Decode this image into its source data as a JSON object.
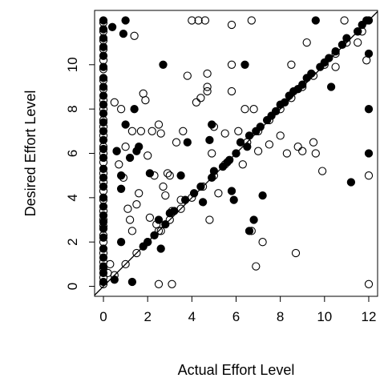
{
  "chart_data": {
    "type": "scatter",
    "title": "",
    "xlabel": "Actual Effort Level",
    "ylabel": "Desired Effort Level",
    "xlim": [
      -0.4,
      12.4
    ],
    "ylim": [
      -0.45,
      12.45
    ],
    "x_ticks": [
      0,
      2,
      4,
      6,
      8,
      10,
      12
    ],
    "y_ticks": [
      0,
      2,
      4,
      6,
      8,
      10
    ],
    "grid": false,
    "legend": "none",
    "reference_line": {
      "slope": 1,
      "intercept": 0
    },
    "series": [
      {
        "marker": "open-circle",
        "points": [
          [
            0,
            0.1
          ],
          [
            0,
            0.4
          ],
          [
            0,
            0.8
          ],
          [
            0,
            1.1
          ],
          [
            0,
            1.5
          ],
          [
            0,
            2.0
          ],
          [
            0,
            2.3
          ],
          [
            0,
            2.7
          ],
          [
            0,
            3.0
          ],
          [
            0,
            3.4
          ],
          [
            0,
            3.9
          ],
          [
            0,
            4.3
          ],
          [
            0,
            4.7
          ],
          [
            0,
            5.1
          ],
          [
            0,
            5.6
          ],
          [
            0,
            6.0
          ],
          [
            0,
            6.3
          ],
          [
            0,
            6.8
          ],
          [
            0,
            7.2
          ],
          [
            0,
            7.5
          ],
          [
            0,
            8.0
          ],
          [
            0,
            8.4
          ],
          [
            0,
            8.9
          ],
          [
            0,
            9.3
          ],
          [
            0,
            9.8
          ],
          [
            0,
            10.2
          ],
          [
            0,
            10.7
          ],
          [
            0,
            11.1
          ],
          [
            0,
            11.5
          ],
          [
            0,
            11.9
          ],
          [
            0.2,
            0.6
          ],
          [
            0.3,
            1.0
          ],
          [
            0.5,
            8.3
          ],
          [
            0.6,
            6.1
          ],
          [
            0.7,
            5.5
          ],
          [
            0.8,
            8.0
          ],
          [
            0.9,
            4.9
          ],
          [
            1.0,
            6.3
          ],
          [
            1.1,
            3.5
          ],
          [
            1.2,
            3.0
          ],
          [
            1.3,
            7.0
          ],
          [
            1.3,
            2.5
          ],
          [
            1.4,
            11.3
          ],
          [
            1.5,
            3.7
          ],
          [
            1.6,
            4.2
          ],
          [
            1.7,
            7.0
          ],
          [
            1.8,
            8.7
          ],
          [
            1.9,
            8.4
          ],
          [
            2.0,
            5.9
          ],
          [
            2.1,
            3.1
          ],
          [
            2.2,
            7.0
          ],
          [
            2.3,
            5.0
          ],
          [
            2.4,
            2.8
          ],
          [
            2.5,
            7.3
          ],
          [
            2.5,
            0.1
          ],
          [
            2.6,
            6.9
          ],
          [
            2.6,
            2.5
          ],
          [
            2.7,
            4.5
          ],
          [
            2.8,
            4.1
          ],
          [
            2.9,
            5.1
          ],
          [
            3.0,
            5.0
          ],
          [
            3.1,
            3.4
          ],
          [
            3.1,
            0.1
          ],
          [
            3.3,
            6.5
          ],
          [
            3.5,
            3.9
          ],
          [
            3.6,
            7.0
          ],
          [
            3.8,
            9.5
          ],
          [
            4.0,
            12.0
          ],
          [
            4.2,
            8.3
          ],
          [
            4.3,
            12.0
          ],
          [
            4.4,
            8.5
          ],
          [
            4.6,
            12.0
          ],
          [
            4.7,
            8.8
          ],
          [
            4.7,
            9.0
          ],
          [
            4.7,
            9.6
          ],
          [
            4.8,
            3.0
          ],
          [
            4.9,
            6.0
          ],
          [
            5.0,
            7.2
          ],
          [
            5.2,
            4.2
          ],
          [
            5.5,
            6.9
          ],
          [
            5.8,
            11.8
          ],
          [
            5.8,
            10.0
          ],
          [
            5.8,
            8.8
          ],
          [
            6.1,
            7.0
          ],
          [
            6.3,
            5.5
          ],
          [
            6.4,
            8.0
          ],
          [
            6.7,
            12.0
          ],
          [
            6.7,
            2.5
          ],
          [
            6.8,
            8.0
          ],
          [
            6.9,
            0.9
          ],
          [
            7.0,
            6.1
          ],
          [
            7.2,
            2.0
          ],
          [
            7.5,
            6.4
          ],
          [
            8.0,
            6.8
          ],
          [
            8.3,
            6.0
          ],
          [
            8.5,
            10.0
          ],
          [
            8.7,
            1.5
          ],
          [
            8.8,
            6.3
          ],
          [
            9.0,
            6.1
          ],
          [
            9.2,
            11.0
          ],
          [
            9.5,
            6.5
          ],
          [
            9.6,
            6.0
          ],
          [
            9.9,
            5.2
          ],
          [
            10.5,
            9.9
          ],
          [
            10.9,
            12.0
          ],
          [
            11.5,
            11.0
          ],
          [
            11.7,
            11.5
          ],
          [
            11.9,
            10.2
          ],
          [
            12.0,
            5.0
          ],
          [
            12.0,
            0.1
          ],
          [
            0.5,
            0.5
          ],
          [
            1.0,
            1.0
          ],
          [
            1.5,
            1.5
          ],
          [
            2.0,
            2.0
          ],
          [
            2.5,
            2.5
          ],
          [
            3.0,
            3.0
          ],
          [
            3.5,
            3.5
          ],
          [
            4.0,
            4.0
          ],
          [
            4.5,
            4.5
          ],
          [
            5.0,
            5.0
          ],
          [
            5.5,
            5.5
          ],
          [
            6.0,
            6.0
          ],
          [
            6.5,
            6.5
          ],
          [
            7.0,
            7.0
          ],
          [
            7.5,
            7.5
          ],
          [
            8.0,
            8.0
          ],
          [
            8.5,
            8.5
          ],
          [
            9.0,
            9.0
          ],
          [
            9.5,
            9.5
          ],
          [
            10.0,
            10.0
          ],
          [
            10.5,
            10.5
          ],
          [
            11.0,
            11.0
          ],
          [
            11.5,
            11.5
          ]
        ]
      },
      {
        "marker": "filled-circle",
        "points": [
          [
            0,
            0.2
          ],
          [
            0,
            0.6
          ],
          [
            0,
            0.9
          ],
          [
            0,
            1.3
          ],
          [
            0,
            1.7
          ],
          [
            0,
            2.2
          ],
          [
            0,
            2.6
          ],
          [
            0,
            2.9
          ],
          [
            0,
            3.2
          ],
          [
            0,
            3.6
          ],
          [
            0,
            4.0
          ],
          [
            0,
            4.5
          ],
          [
            0,
            4.9
          ],
          [
            0,
            5.3
          ],
          [
            0,
            5.8
          ],
          [
            0,
            6.2
          ],
          [
            0,
            6.6
          ],
          [
            0,
            7.0
          ],
          [
            0,
            7.4
          ],
          [
            0,
            7.8
          ],
          [
            0,
            8.2
          ],
          [
            0,
            8.6
          ],
          [
            0,
            9.0
          ],
          [
            0,
            9.4
          ],
          [
            0,
            9.9
          ],
          [
            0,
            10.4
          ],
          [
            0,
            10.8
          ],
          [
            0,
            11.2
          ],
          [
            0,
            11.6
          ],
          [
            0,
            12.0
          ],
          [
            0.4,
            11.7
          ],
          [
            0.5,
            0.3
          ],
          [
            0.6,
            6.1
          ],
          [
            0.8,
            5.0
          ],
          [
            0.8,
            2.0
          ],
          [
            0.8,
            4.4
          ],
          [
            0.9,
            11.4
          ],
          [
            1.0,
            7.3
          ],
          [
            1.0,
            12.0
          ],
          [
            1.2,
            5.8
          ],
          [
            1.3,
            0.2
          ],
          [
            1.4,
            8.0
          ],
          [
            1.5,
            6.1
          ],
          [
            1.6,
            6.3
          ],
          [
            1.8,
            1.8
          ],
          [
            2.0,
            2.0
          ],
          [
            2.1,
            5.1
          ],
          [
            2.3,
            2.3
          ],
          [
            2.5,
            3.0
          ],
          [
            2.6,
            1.7
          ],
          [
            2.7,
            10.0
          ],
          [
            2.8,
            2.8
          ],
          [
            3.0,
            3.3
          ],
          [
            3.2,
            3.4
          ],
          [
            3.5,
            5.0
          ],
          [
            3.7,
            3.9
          ],
          [
            3.8,
            6.5
          ],
          [
            4.1,
            4.2
          ],
          [
            4.4,
            4.5
          ],
          [
            4.5,
            3.8
          ],
          [
            4.8,
            6.6
          ],
          [
            4.9,
            7.3
          ],
          [
            4.9,
            4.9
          ],
          [
            5.0,
            5.2
          ],
          [
            5.4,
            5.4
          ],
          [
            5.6,
            5.6
          ],
          [
            5.7,
            5.7
          ],
          [
            5.8,
            4.3
          ],
          [
            5.9,
            3.9
          ],
          [
            6.0,
            6.0
          ],
          [
            6.2,
            6.5
          ],
          [
            6.4,
            10.0
          ],
          [
            6.5,
            6.3
          ],
          [
            6.6,
            6.8
          ],
          [
            6.8,
            3.0
          ],
          [
            6.9,
            7.0
          ],
          [
            7.1,
            7.2
          ],
          [
            7.2,
            4.1
          ],
          [
            7.4,
            7.5
          ],
          [
            7.6,
            7.7
          ],
          [
            7.8,
            7.9
          ],
          [
            8.0,
            8.2
          ],
          [
            8.2,
            8.3
          ],
          [
            8.4,
            8.6
          ],
          [
            8.6,
            8.8
          ],
          [
            8.8,
            8.9
          ],
          [
            9.0,
            9.1
          ],
          [
            9.2,
            9.4
          ],
          [
            9.4,
            9.6
          ],
          [
            9.6,
            12.0
          ],
          [
            9.8,
            9.9
          ],
          [
            10.0,
            10.1
          ],
          [
            10.2,
            10.3
          ],
          [
            10.3,
            9.0
          ],
          [
            10.5,
            10.6
          ],
          [
            10.8,
            10.9
          ],
          [
            11.0,
            11.2
          ],
          [
            11.2,
            4.7
          ],
          [
            11.5,
            11.5
          ],
          [
            11.7,
            11.8
          ],
          [
            11.9,
            12.0
          ],
          [
            12.0,
            8.0
          ],
          [
            12.0,
            6.0
          ],
          [
            12.0,
            10.5
          ],
          [
            12.0,
            12.0
          ],
          [
            6.6,
            2.5
          ]
        ]
      }
    ]
  }
}
